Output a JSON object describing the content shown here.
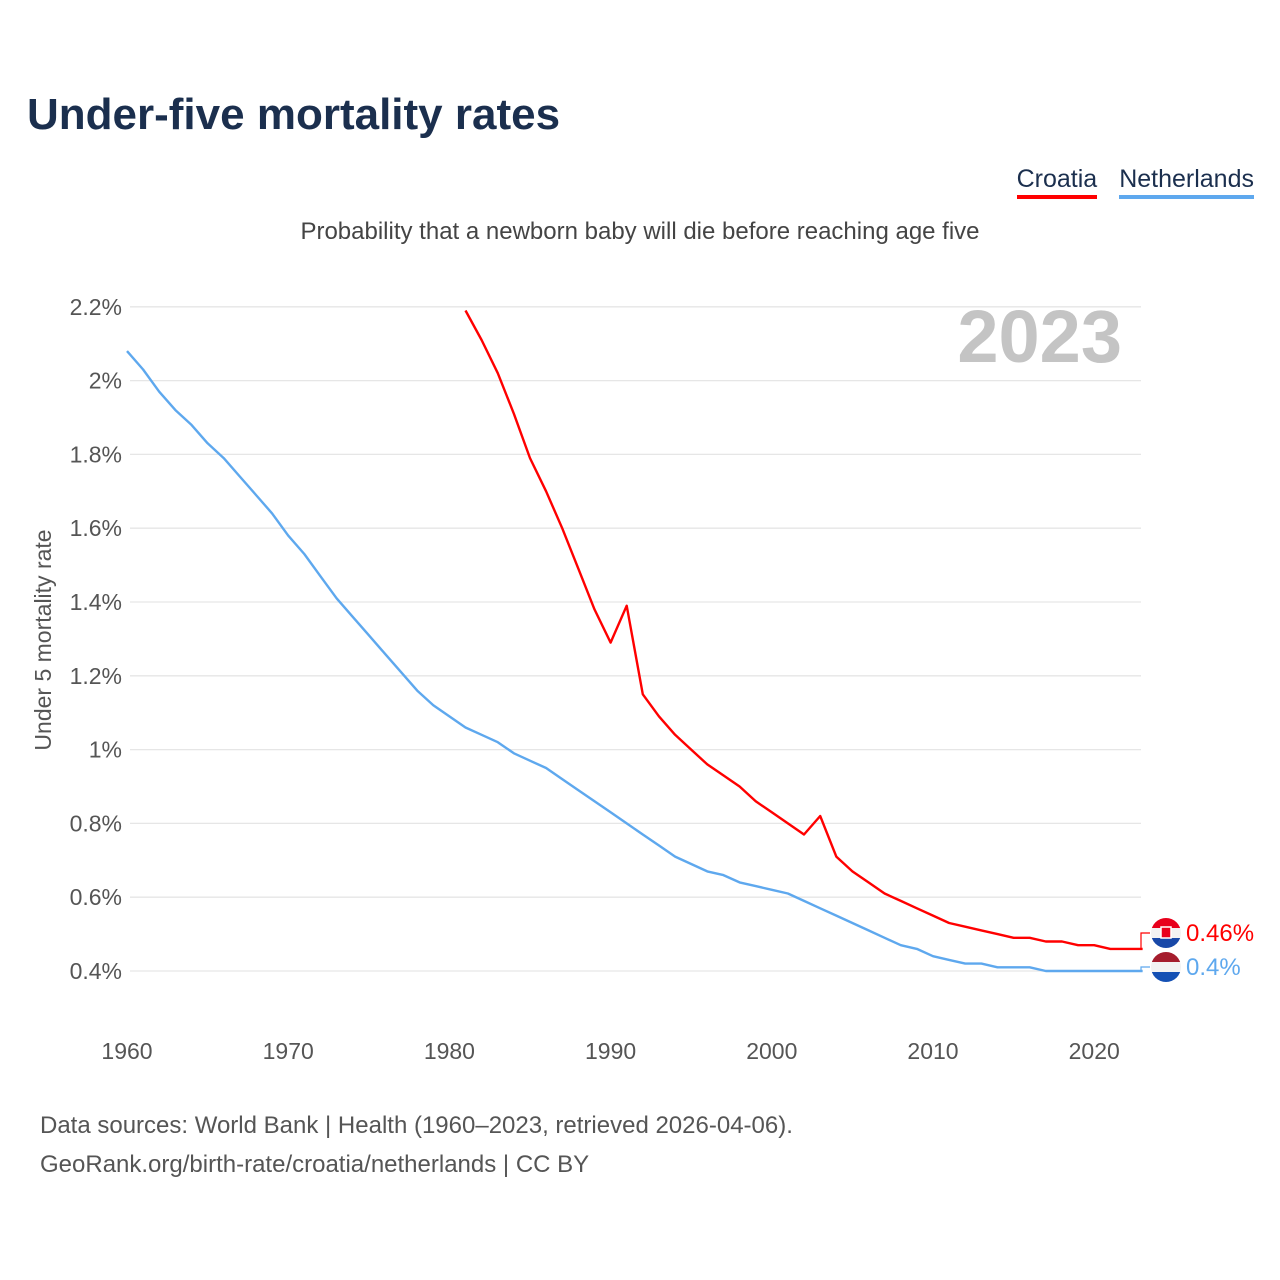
{
  "chart_data": {
    "type": "line",
    "title": "Under-five mortality rates",
    "subtitle": "Probability that a newborn baby will die before reaching age five",
    "ylabel": "Under 5 mortality rate",
    "xlabel": "",
    "year_label": "2023",
    "ylim": [
      0.4,
      2.2
    ],
    "xlim": [
      1960,
      2023
    ],
    "grid": true,
    "legend_placement": "top-right",
    "yticks": [
      {
        "v": 0.4,
        "label": "0.4%"
      },
      {
        "v": 0.6,
        "label": "0.6%"
      },
      {
        "v": 0.8,
        "label": "0.8%"
      },
      {
        "v": 1.0,
        "label": "1%"
      },
      {
        "v": 1.2,
        "label": "1.2%"
      },
      {
        "v": 1.4,
        "label": "1.4%"
      },
      {
        "v": 1.6,
        "label": "1.6%"
      },
      {
        "v": 1.8,
        "label": "1.8%"
      },
      {
        "v": 2.0,
        "label": "2%"
      },
      {
        "v": 2.2,
        "label": "2.2%"
      }
    ],
    "xticks": [
      {
        "v": 1960,
        "label": "1960"
      },
      {
        "v": 1970,
        "label": "1970"
      },
      {
        "v": 1980,
        "label": "1980"
      },
      {
        "v": 1990,
        "label": "1990"
      },
      {
        "v": 2000,
        "label": "2000"
      },
      {
        "v": 2010,
        "label": "2010"
      },
      {
        "v": 2020,
        "label": "2020"
      }
    ],
    "series": [
      {
        "name": "Croatia",
        "color": "#ff0000",
        "start_year": 1981,
        "end_label": "0.46%",
        "values": [
          2.19,
          2.11,
          2.02,
          1.91,
          1.79,
          1.7,
          1.6,
          1.49,
          1.38,
          1.29,
          1.39,
          1.15,
          1.09,
          1.04,
          1.0,
          0.96,
          0.93,
          0.9,
          0.86,
          0.83,
          0.8,
          0.77,
          0.82,
          0.71,
          0.67,
          0.64,
          0.61,
          0.59,
          0.57,
          0.55,
          0.53,
          0.52,
          0.51,
          0.5,
          0.49,
          0.49,
          0.48,
          0.48,
          0.47,
          0.47,
          0.46,
          0.46,
          0.46
        ]
      },
      {
        "name": "Netherlands",
        "color": "#5ea8ee",
        "start_year": 1960,
        "end_label": "0.4%",
        "values": [
          2.08,
          2.03,
          1.97,
          1.92,
          1.88,
          1.83,
          1.79,
          1.74,
          1.69,
          1.64,
          1.58,
          1.53,
          1.47,
          1.41,
          1.36,
          1.31,
          1.26,
          1.21,
          1.16,
          1.12,
          1.09,
          1.06,
          1.04,
          1.02,
          0.99,
          0.97,
          0.95,
          0.92,
          0.89,
          0.86,
          0.83,
          0.8,
          0.77,
          0.74,
          0.71,
          0.69,
          0.67,
          0.66,
          0.64,
          0.63,
          0.62,
          0.61,
          0.59,
          0.57,
          0.55,
          0.53,
          0.51,
          0.49,
          0.47,
          0.46,
          0.44,
          0.43,
          0.42,
          0.42,
          0.41,
          0.41,
          0.41,
          0.4,
          0.4,
          0.4,
          0.4,
          0.4,
          0.4,
          0.4
        ]
      }
    ]
  },
  "source": {
    "line1": "Data sources: World Bank | Health (1960–2023, retrieved 2026-04-06).",
    "line2": "GeoRank.org/birth-rate/croatia/netherlands | CC BY"
  }
}
